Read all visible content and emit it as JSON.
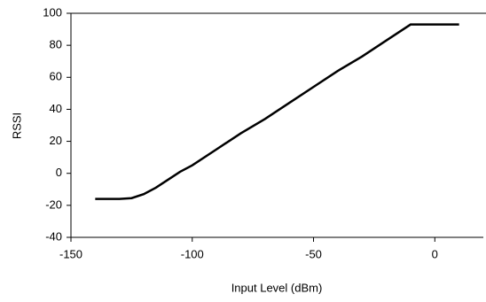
{
  "chart_data": {
    "type": "line",
    "x_label": "Input Level (dBm)",
    "y_label": "RSSI",
    "x": [
      -140,
      -130,
      -125,
      -120,
      -115,
      -110,
      -105,
      -100,
      -90,
      -80,
      -70,
      -60,
      -50,
      -40,
      -30,
      -20,
      -10,
      0,
      10
    ],
    "series": [
      {
        "name": "RSSI",
        "color": "#000000",
        "values": [
          -16,
          -16,
          -15.5,
          -13,
          -9,
          -4,
          1,
          5,
          15,
          25,
          34,
          44,
          54,
          64,
          73,
          83,
          93,
          93,
          93
        ]
      }
    ],
    "xlim": [
      -150,
      20
    ],
    "xticks": [
      -150,
      -100,
      -50,
      0
    ],
    "ylim": [
      -40,
      100
    ],
    "yticks": [
      -40,
      -20,
      0,
      20,
      40,
      60,
      80,
      100
    ],
    "grid": false
  }
}
